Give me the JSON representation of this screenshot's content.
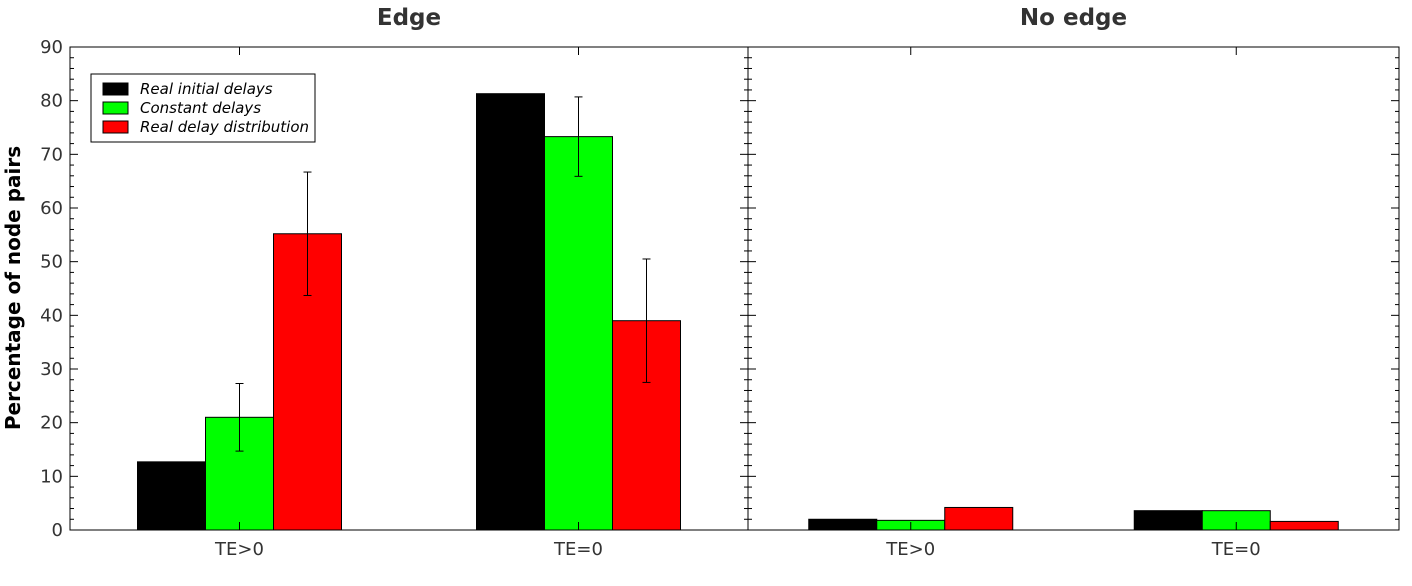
{
  "chart_data": {
    "type": "bar",
    "ylabel": "Percentage of node pairs",
    "ylim": [
      0,
      90
    ],
    "yticks": [
      0,
      10,
      20,
      30,
      40,
      50,
      60,
      70,
      80,
      90
    ],
    "grid": false,
    "legend_position": "top-left",
    "series": [
      {
        "name": "Real initial delays",
        "color": "#000000"
      },
      {
        "name": "Constant delays",
        "color": "#00ff00"
      },
      {
        "name": "Real delay distribution",
        "color": "#ff0000"
      }
    ],
    "panels": [
      {
        "title": "Edge",
        "categories": [
          "TE>0",
          "TE=0"
        ],
        "values": [
          [
            12.7,
            21.0,
            55.2
          ],
          [
            81.3,
            73.3,
            39.0
          ]
        ],
        "errors": [
          [
            null,
            6.3,
            11.5
          ],
          [
            null,
            7.4,
            11.5
          ]
        ]
      },
      {
        "title": "No edge",
        "categories": [
          "TE>0",
          "TE=0"
        ],
        "values": [
          [
            2.0,
            1.8,
            4.2
          ],
          [
            3.6,
            3.6,
            1.6
          ]
        ],
        "errors": [
          [
            null,
            null,
            null
          ],
          [
            null,
            null,
            null
          ]
        ]
      }
    ]
  }
}
